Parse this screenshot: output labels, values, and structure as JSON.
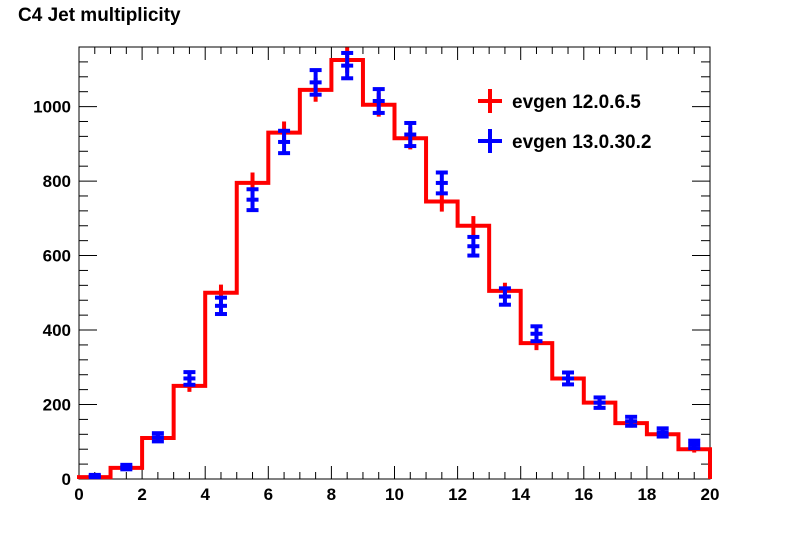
{
  "chart_data": {
    "type": "histogram",
    "title": "C4 Jet multiplicity",
    "xlabel": "",
    "ylabel": "",
    "xlim": [
      0,
      20
    ],
    "ylim": [
      0,
      1160
    ],
    "x_ticks": [
      0,
      2,
      4,
      6,
      8,
      10,
      12,
      14,
      16,
      18,
      20
    ],
    "y_ticks": [
      0,
      200,
      400,
      600,
      800,
      1000
    ],
    "bin_edges": [
      0,
      1,
      2,
      3,
      4,
      5,
      6,
      7,
      8,
      9,
      10,
      11,
      12,
      13,
      14,
      15,
      16,
      17,
      18,
      19,
      20
    ],
    "series": [
      {
        "name": "evgen 12.0.6.5",
        "color": "#ff0000",
        "style": "step-with-errors",
        "values": [
          5,
          30,
          110,
          250,
          500,
          795,
          930,
          1045,
          1125,
          1005,
          915,
          745,
          680,
          505,
          365,
          270,
          205,
          150,
          120,
          80
        ],
        "errors": [
          2,
          6,
          11,
          16,
          22,
          28,
          30,
          32,
          34,
          32,
          30,
          27,
          26,
          22,
          19,
          16,
          14,
          12,
          11,
          9
        ]
      },
      {
        "name": "evgen 13.0.30.2",
        "color": "#0000ff",
        "style": "points-with-errors",
        "values": [
          8,
          32,
          112,
          270,
          465,
          750,
          905,
          1065,
          1110,
          1015,
          925,
          795,
          625,
          490,
          390,
          270,
          205,
          155,
          125,
          93
        ],
        "errors": [
          3,
          6,
          11,
          17,
          22,
          28,
          30,
          33,
          34,
          32,
          31,
          28,
          25,
          22,
          20,
          16,
          14,
          12,
          11,
          10
        ]
      }
    ],
    "legend": {
      "placement": "top-right"
    },
    "grid": false
  }
}
